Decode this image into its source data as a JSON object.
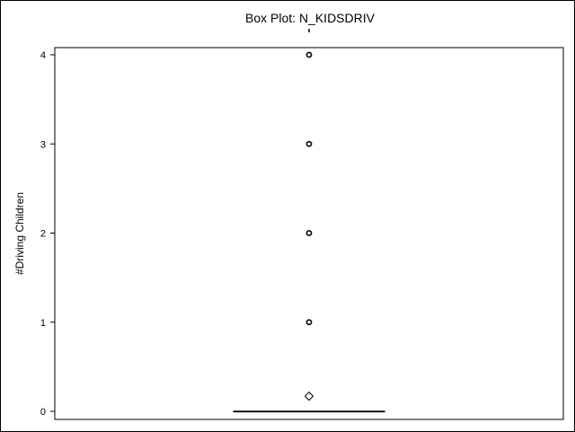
{
  "chart_data": {
    "type": "box",
    "title": "Box Plot: N_KIDSDRIV",
    "ylabel": "#Driving Children",
    "xlabel": "",
    "ylim": [
      0,
      4
    ],
    "yticks": [
      0,
      1,
      2,
      3,
      4
    ],
    "grid": false,
    "legend": "none",
    "box": {
      "min": 0,
      "q1": 0,
      "median": 0,
      "q3": 0,
      "max": 0,
      "mean": 0.17
    },
    "outliers": [
      1,
      2,
      3,
      4
    ],
    "colors": {
      "stroke": "#000000",
      "background": "#ffffff"
    }
  }
}
